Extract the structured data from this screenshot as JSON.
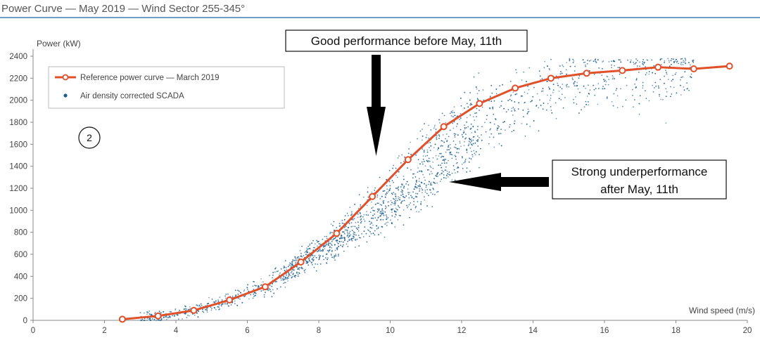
{
  "chart_data": {
    "type": "scatter",
    "title": "Power Curve — May 2019 — Wind Sector 255-345°",
    "xlabel": "Wind speed (m/s)",
    "ylabel": "Power (kW)",
    "xlim": [
      0,
      20
    ],
    "ylim": [
      0,
      2400
    ],
    "x_ticks": [
      "0",
      "2",
      "4",
      "6",
      "8",
      "10",
      "12",
      "14",
      "16",
      "18",
      "20"
    ],
    "y_ticks": [
      "0",
      "200",
      "400",
      "600",
      "800",
      "1000",
      "1200",
      "1400",
      "1600",
      "1800",
      "2000",
      "2200",
      "2400"
    ],
    "grid": false,
    "legend_position": "top-left",
    "series": [
      {
        "name": "Reference power curve — March 2019",
        "type": "line",
        "color": "#e0502a",
        "x": [
          2.5,
          3.5,
          4.5,
          5.5,
          6.5,
          7.5,
          8.5,
          9.5,
          10.5,
          11.5,
          12.5,
          13.5,
          14.5,
          15.5,
          16.5,
          17.5,
          18.5,
          19.5
        ],
        "y": [
          10,
          40,
          90,
          185,
          305,
          530,
          790,
          1125,
          1460,
          1760,
          1970,
          2110,
          2200,
          2245,
          2270,
          2300,
          2285,
          2310
        ]
      },
      {
        "name": "Air density corrected SCADA",
        "type": "scatter",
        "color": "#1f5f8f",
        "description_points": "scatter cloud around the reference curve, shifted toward higher wind speeds above ~8 m/s"
      }
    ],
    "annotations": [
      {
        "text": "Good performance before May, 11th"
      },
      {
        "text_line1": "Strong underperformance",
        "text_line2": "after May, 11th"
      },
      {
        "text": "2"
      }
    ]
  }
}
